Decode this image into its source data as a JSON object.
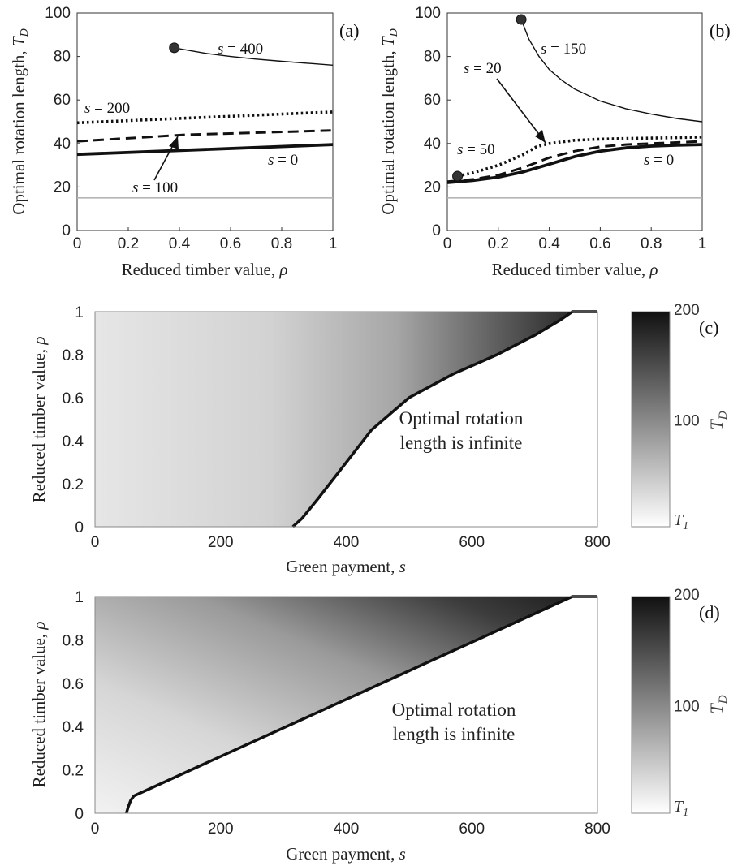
{
  "chart_data": [
    {
      "panel": "(a)",
      "type": "line",
      "xlabel": "Reduced timber value, ρ",
      "ylabel": "Optimal rotation length, T_D",
      "xlim": [
        0,
        1
      ],
      "ylim": [
        0,
        100
      ],
      "xticks": [
        "0",
        "0.2",
        "0.4",
        "0.6",
        "0.8",
        "1"
      ],
      "yticks": [
        "0",
        "20",
        "40",
        "60",
        "80",
        "100"
      ],
      "reference_line_y": 15,
      "series": [
        {
          "name": "s = 0",
          "style": "solid-thick",
          "x": [
            0,
            1
          ],
          "y": [
            35,
            39.5
          ]
        },
        {
          "name": "s = 100",
          "style": "dashed",
          "x": [
            0,
            0.42,
            1
          ],
          "y": [
            41,
            44,
            46
          ]
        },
        {
          "name": "s = 200",
          "style": "dotted",
          "x": [
            0,
            1
          ],
          "y": [
            49.5,
            54.5
          ]
        },
        {
          "name": "s = 400",
          "style": "thin",
          "x": [
            0.38,
            0.5,
            0.6,
            0.7,
            0.8,
            0.9,
            1
          ],
          "y": [
            84,
            81.5,
            80,
            78.8,
            77.8,
            76.9,
            76
          ]
        }
      ],
      "markers": [
        {
          "x": 0.38,
          "y": 84
        }
      ],
      "annotations": [
        {
          "pre": "s",
          "post": " = 400"
        },
        {
          "pre": "s",
          "post": " = 200"
        },
        {
          "pre": "s",
          "post": " = 0"
        },
        {
          "pre": "s",
          "post": " = 100"
        }
      ]
    },
    {
      "panel": "(b)",
      "type": "line",
      "xlabel": "Reduced timber value, ρ",
      "ylabel": "Optimal rotation length, T_D",
      "xlim": [
        0,
        1
      ],
      "ylim": [
        0,
        100
      ],
      "xticks": [
        "0",
        "0.2",
        "0.4",
        "0.6",
        "0.8",
        "1"
      ],
      "yticks": [
        "0",
        "20",
        "40",
        "60",
        "80",
        "100"
      ],
      "reference_line_y": 15,
      "series": [
        {
          "name": "s = 0",
          "style": "solid-thick",
          "x": [
            0,
            0.1,
            0.2,
            0.3,
            0.4,
            0.5,
            0.6,
            0.7,
            0.8,
            0.9,
            1
          ],
          "y": [
            22,
            23,
            24.5,
            27,
            30.5,
            34,
            36.5,
            38,
            38.8,
            39.2,
            39.5
          ]
        },
        {
          "name": "s = 20",
          "style": "dashed",
          "x": [
            0,
            0.1,
            0.2,
            0.3,
            0.4,
            0.5,
            0.6,
            0.7,
            0.8,
            0.9,
            1
          ],
          "y": [
            22.5,
            23.5,
            25.5,
            29,
            33.5,
            36.5,
            38.5,
            39.5,
            40,
            40.5,
            41
          ]
        },
        {
          "name": "s = 50",
          "style": "dotted",
          "x": [
            0.04,
            0.1,
            0.2,
            0.3,
            0.35,
            0.4,
            0.5,
            0.6,
            0.7,
            0.8,
            0.9,
            1
          ],
          "y": [
            25,
            26.5,
            30,
            35,
            38.5,
            40,
            41.5,
            42,
            42.3,
            42.5,
            42.7,
            43
          ]
        },
        {
          "name": "s = 150",
          "style": "thin",
          "x": [
            0.29,
            0.32,
            0.36,
            0.4,
            0.45,
            0.5,
            0.6,
            0.7,
            0.8,
            0.9,
            1
          ],
          "y": [
            97,
            88,
            80,
            74,
            69,
            65,
            59.5,
            56,
            53.5,
            51.5,
            50
          ]
        }
      ],
      "markers": [
        {
          "x": 0.29,
          "y": 97
        },
        {
          "x": 0.04,
          "y": 25
        }
      ],
      "annotations": [
        {
          "pre": "s",
          "post": " = 150"
        },
        {
          "pre": "s",
          "post": " = 20"
        },
        {
          "pre": "s",
          "post": " = 50"
        },
        {
          "pre": "s",
          "post": " = 0"
        }
      ]
    },
    {
      "panel": "(c)",
      "type": "heatmap",
      "xlabel": "Green payment, s",
      "ylabel": "Reduced timber value, ρ",
      "xlim": [
        0,
        800
      ],
      "ylim": [
        0,
        1
      ],
      "xticks": [
        "0",
        "200",
        "400",
        "600",
        "800"
      ],
      "yticks": [
        "0",
        "0.2",
        "0.4",
        "0.6",
        "0.8",
        "1"
      ],
      "colorbar": {
        "label": "T_D",
        "ticks": [
          "200",
          "100",
          "T_1"
        ],
        "min_label": "T_1",
        "max": 200
      },
      "boundary": {
        "x": [
          315,
          330,
          355,
          395,
          440,
          500,
          570,
          640,
          700,
          740,
          760,
          800
        ],
        "y": [
          0,
          0.04,
          0.13,
          0.28,
          0.45,
          0.6,
          0.71,
          0.8,
          0.89,
          0.96,
          1,
          1
        ]
      },
      "region_text": [
        "Optimal rotation",
        "length is infinite"
      ]
    },
    {
      "panel": "(d)",
      "type": "heatmap",
      "xlabel": "Green payment, s",
      "ylabel": "Reduced timber value, ρ",
      "xlim": [
        0,
        800
      ],
      "ylim": [
        0,
        1
      ],
      "xticks": [
        "0",
        "200",
        "400",
        "600",
        "800"
      ],
      "yticks": [
        "0",
        "0.2",
        "0.4",
        "0.6",
        "0.8",
        "1"
      ],
      "colorbar": {
        "label": "T_D",
        "ticks": [
          "200",
          "100",
          "T_1"
        ],
        "min_label": "T_1",
        "max": 200
      },
      "boundary": {
        "x": [
          50,
          53,
          57,
          62,
          760,
          800
        ],
        "y": [
          0,
          0.03,
          0.06,
          0.08,
          1,
          1
        ]
      },
      "region_text": [
        "Optimal rotation",
        "length is infinite"
      ]
    }
  ]
}
